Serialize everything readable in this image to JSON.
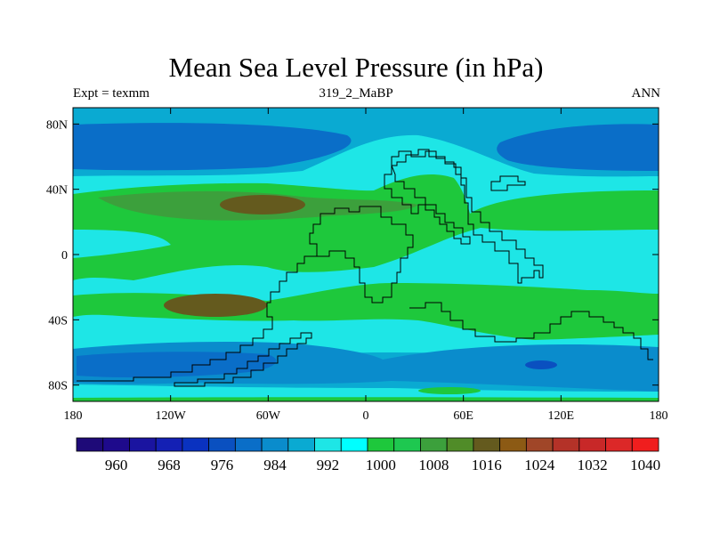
{
  "title": "Mean Sea Level Pressure (in hPa)",
  "subtitle": {
    "left": "Expt = texmm",
    "center": "319_2_MaBP",
    "right": "ANN"
  },
  "chart_data": {
    "type": "heatmap",
    "variable": "Mean Sea Level Pressure",
    "units": "hPa",
    "experiment": "texmm",
    "period": "ANN",
    "x_axis": {
      "range": [
        -180,
        180
      ],
      "ticks": [
        -180,
        -120,
        -60,
        0,
        60,
        120,
        180
      ],
      "tick_labels": [
        "180",
        "120W",
        "60W",
        "0",
        "60E",
        "120E",
        "180"
      ]
    },
    "y_axis": {
      "range": [
        -90,
        90
      ],
      "ticks": [
        80,
        40,
        0,
        -40,
        -80
      ],
      "tick_labels": [
        "80N",
        "40N",
        "0",
        "40S",
        "80S"
      ]
    },
    "colorbar": {
      "levels": [
        956,
        960,
        964,
        968,
        972,
        976,
        980,
        984,
        988,
        992,
        996,
        1000,
        1004,
        1008,
        1012,
        1016,
        1020,
        1024,
        1028,
        1032,
        1036,
        1040
      ],
      "labeled_levels": [
        960,
        968,
        976,
        984,
        992,
        1000,
        1008,
        1016,
        1024,
        1032,
        1040
      ],
      "labels": [
        "960",
        "968",
        "976",
        "984",
        "992",
        "1000",
        "1008",
        "1016",
        "1024",
        "1032",
        "1040"
      ],
      "colors": [
        "#1e0a78",
        "#1e0a8c",
        "#1a14a0",
        "#1420b4",
        "#0a32c0",
        "#0a50c0",
        "#0a6ec8",
        "#0a8ccc",
        "#0aaad2",
        "#1ee6e6",
        "#00ffff",
        "#1ec83c",
        "#1ec850",
        "#3ca03c",
        "#508c28",
        "#645a1e",
        "#8c5a14",
        "#a04628",
        "#b43228",
        "#c82828",
        "#dc2828",
        "#f01e1e"
      ]
    },
    "fields": {
      "north_polar_lows_hPa": 984,
      "subtropical_high_hPa": 1016,
      "southern_ocean_low_hPa": 980
    }
  }
}
